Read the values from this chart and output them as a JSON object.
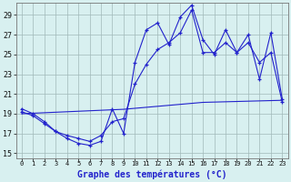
{
  "title": "Graphe des températures (°C)",
  "x_labels": [
    "0",
    "1",
    "2",
    "3",
    "4",
    "5",
    "6",
    "7",
    "8",
    "9",
    "10",
    "11",
    "12",
    "13",
    "14",
    "15",
    "16",
    "17",
    "18",
    "19",
    "20",
    "21",
    "22",
    "23"
  ],
  "ylim": [
    14.5,
    30.2
  ],
  "yticks": [
    15,
    17,
    19,
    21,
    23,
    25,
    27,
    29
  ],
  "line1_y": [
    19.5,
    19.0,
    18.2,
    17.2,
    16.5,
    16.0,
    15.8,
    16.2,
    19.5,
    17.0,
    24.2,
    27.5,
    28.2,
    26.0,
    28.8,
    30.0,
    26.5,
    25.0,
    27.5,
    25.2,
    27.0,
    22.5,
    27.2,
    20.5
  ],
  "line2_y": [
    19.2,
    18.8,
    18.0,
    17.2,
    16.8,
    16.5,
    16.2,
    16.8,
    18.2,
    18.5,
    22.0,
    24.0,
    25.5,
    26.2,
    27.2,
    29.5,
    25.2,
    25.2,
    26.2,
    25.2,
    26.2,
    24.2,
    25.2,
    20.2
  ],
  "line3_y": [
    19.0,
    19.05,
    19.1,
    19.15,
    19.2,
    19.25,
    19.3,
    19.35,
    19.4,
    19.45,
    19.55,
    19.65,
    19.75,
    19.85,
    19.95,
    20.05,
    20.15,
    20.18,
    20.21,
    20.24,
    20.27,
    20.3,
    20.33,
    20.36
  ],
  "line_color": "#2222cc",
  "bg_color": "#d8f0f0",
  "grid_color": "#a0b8b8",
  "marker": "+"
}
